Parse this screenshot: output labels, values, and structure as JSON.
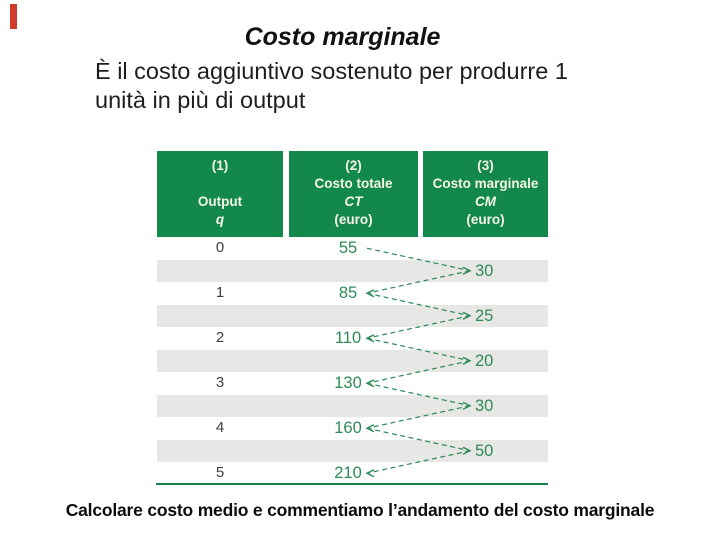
{
  "colors": {
    "accent-red": "#d23b2a",
    "header-green": "#12894b",
    "header-text": "#f7f4e8",
    "stripe-gray": "#e7e7e5",
    "value-green": "#2e8b57",
    "rule-green": "#157f45",
    "output-text": "#404040",
    "body-text": "#1e1e1e"
  },
  "slide": {
    "title": "Costo marginale",
    "intro_lines": {
      "0": "È il costo aggiuntivo sostenuto per produrre 1",
      "1": "unità in più di output"
    },
    "caption": "Calcolare costo medio e commentiamo l’andamento del costo marginale"
  },
  "table": {
    "columns": [
      {
        "lines": [
          "(1)",
          "",
          "Output",
          "q"
        ]
      },
      {
        "lines": [
          "(2)",
          "Costo totale",
          "CT",
          "(euro)"
        ]
      },
      {
        "lines": [
          "(3)",
          "Costo marginale",
          "CM",
          "(euro)"
        ]
      }
    ],
    "outputs": [
      "0",
      "1",
      "2",
      "3",
      "4",
      "5"
    ],
    "ct_values": [
      "55",
      "85",
      "110",
      "130",
      "160",
      "210"
    ],
    "cm_values": [
      "30",
      "25",
      "20",
      "30",
      "50"
    ]
  }
}
